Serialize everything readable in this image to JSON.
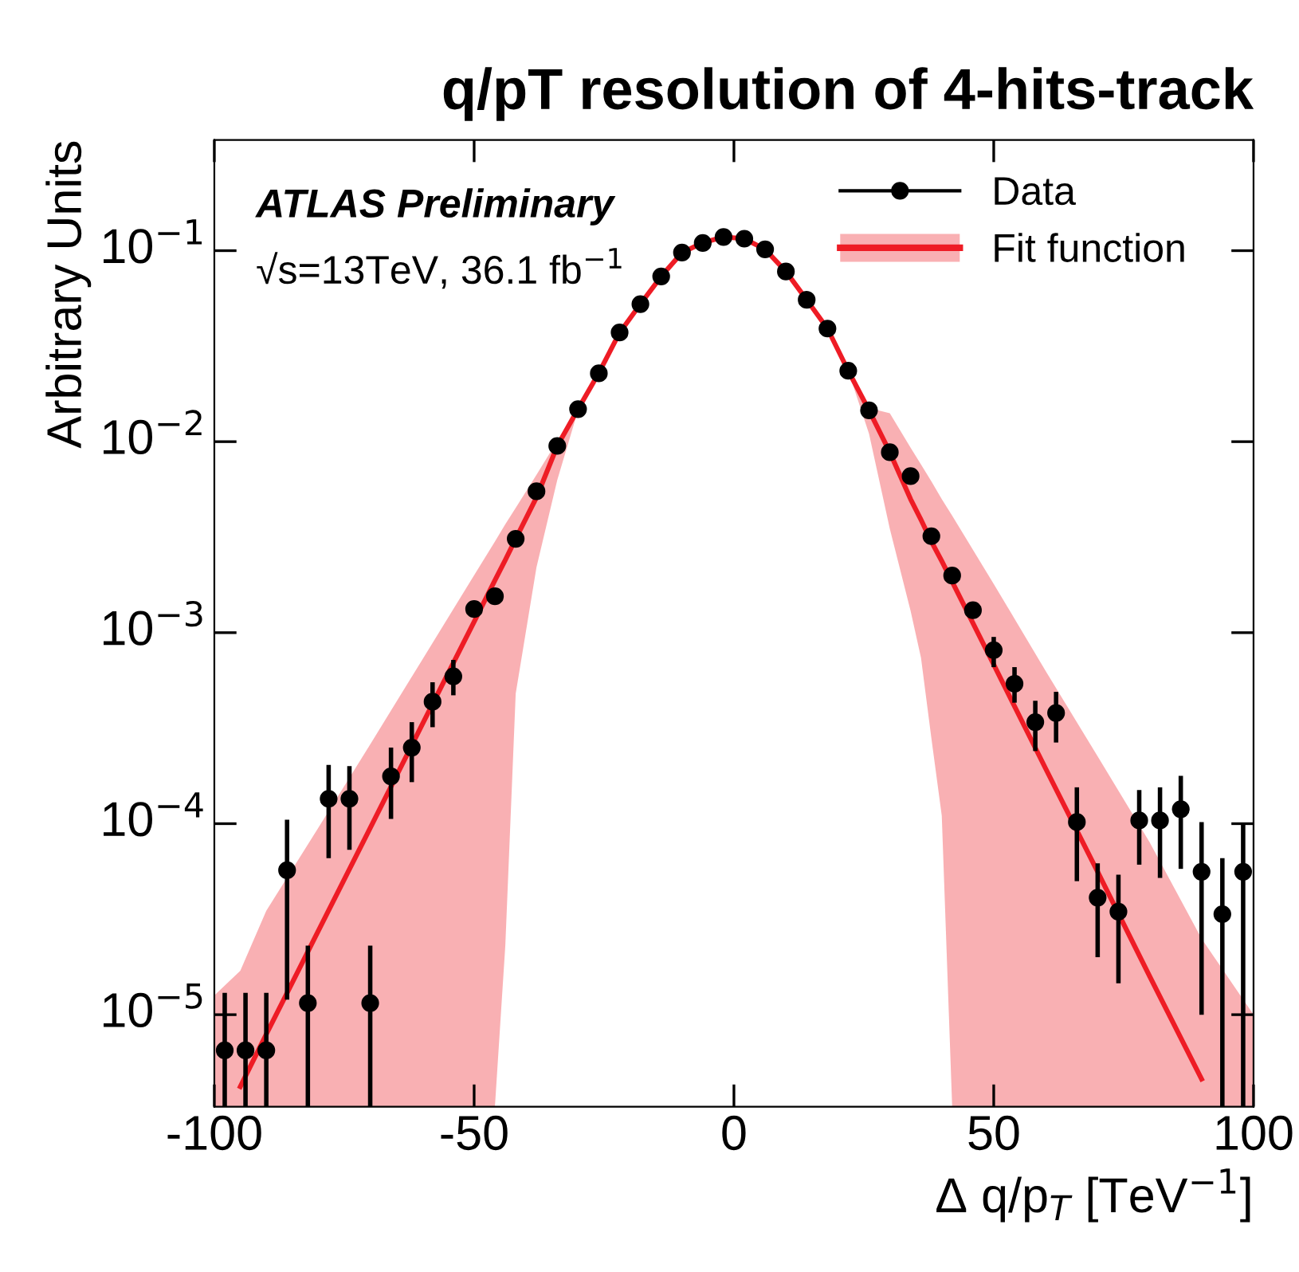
{
  "chart_data": {
    "type": "line",
    "title": "q/pT resolution of 4-hits-track",
    "xlabel": "Δ q/p$_{T}$ [TeV$^{−1}$]",
    "ylabel": "Arbitrary Units",
    "annotations": [
      "ATLAS Preliminary",
      "√s=13TeV, 36.1 fb$^{−1}$"
    ],
    "log": "y",
    "grid": false,
    "legend": "top right",
    "xlim": [
      -100,
      100
    ],
    "xticks": [
      -100,
      -50,
      0,
      50,
      100
    ],
    "ylim": [
      3.3e-06,
      0.38
    ],
    "yticks": [
      {
        "value": 1e-05,
        "label": "10$^{−5}$"
      },
      {
        "value": 0.0001,
        "label": "10$^{−4}$"
      },
      {
        "value": 0.001,
        "label": "10$^{−3}$"
      },
      {
        "value": 0.01,
        "label": "10$^{−2}$"
      },
      {
        "value": 0.1,
        "label": "10$^{−1}$"
      }
    ],
    "series": [
      {
        "name": "Fit function",
        "color": "#ee1c25",
        "line_style": "solid",
        "marker": "none",
        "x": [
          -100,
          -95,
          -90,
          -80,
          -70,
          -60,
          -50,
          -46,
          -44,
          -42,
          -38,
          -34,
          -30,
          -26,
          -22,
          -18,
          -14,
          -10,
          -6,
          -2,
          2,
          6,
          10,
          14,
          18,
          22,
          26,
          30,
          34,
          36,
          38,
          40,
          42,
          50,
          60,
          70,
          80,
          90,
          100
        ],
        "values": [
          null,
          4.2e-06,
          7.9e-06,
          2.74e-05,
          9.5e-05,
          0.00033,
          0.00114,
          0.00188,
          0.0024,
          0.0031,
          0.0051,
          0.0095,
          0.0148,
          0.0229,
          0.0372,
          0.0525,
          0.0733,
          0.0977,
          0.11,
          0.118,
          0.1155,
          0.1016,
          0.0778,
          0.0553,
          0.0391,
          0.0235,
          0.0146,
          0.0088,
          0.005,
          0.0039,
          0.003,
          0.00237,
          0.00185,
          0.00068,
          0.000194,
          5.6e-05,
          1.59e-05,
          4.6e-06,
          null
        ],
        "lower": [
          3.3e-06,
          3.3e-06,
          3.3e-06,
          3.3e-06,
          3.3e-06,
          3.3e-06,
          3.3e-06,
          3.3e-06,
          2.3e-05,
          0.00048,
          0.0022,
          0.0063,
          0.0146,
          0.0229,
          0.0372,
          0.0525,
          0.0733,
          0.0977,
          0.11,
          0.118,
          0.1155,
          0.1016,
          0.0778,
          0.0553,
          0.0391,
          0.0235,
          0.011,
          0.0035,
          0.0013,
          0.00074,
          0.00028,
          0.00011,
          3.3e-06,
          3.3e-06,
          3.3e-06,
          3.3e-06,
          3.3e-06,
          3.3e-06,
          3.3e-06
        ],
        "upper": [
          1.26e-05,
          1.7e-05,
          3.5e-05,
          9.5e-05,
          0.00026,
          0.00072,
          0.002,
          0.003,
          0.0037,
          0.0045,
          0.0067,
          0.0101,
          0.0151,
          0.0229,
          0.0372,
          0.0525,
          0.0733,
          0.0977,
          0.11,
          0.118,
          0.1155,
          0.1016,
          0.0778,
          0.0553,
          0.0391,
          0.0235,
          0.015,
          0.0141,
          0.0093,
          0.0076,
          0.0062,
          0.005,
          0.0041,
          0.0018,
          0.00063,
          0.000225,
          8e-05,
          2.5e-05,
          1e-05
        ]
      },
      {
        "name": "Data",
        "type": "scatter",
        "color": "#000000",
        "marker": "circle",
        "x": [
          -98,
          -94,
          -90,
          -86,
          -82,
          -78,
          -74,
          -70,
          -66,
          -62,
          -58,
          -54,
          -50,
          -46,
          -42,
          -38,
          -34,
          -30,
          -26,
          -22,
          -18,
          -14,
          -10,
          -6,
          -2,
          2,
          6,
          10,
          14,
          18,
          22,
          26,
          30,
          34,
          38,
          42,
          46,
          50,
          54,
          58,
          62,
          66,
          70,
          74,
          78,
          82,
          86,
          90,
          94,
          98
        ],
        "values": [
          6.5e-06,
          6.5e-06,
          6.5e-06,
          5.7e-05,
          1.15e-05,
          0.000135,
          0.000135,
          1.15e-05,
          0.000177,
          0.00025,
          0.000435,
          0.00059,
          0.00133,
          0.00155,
          0.0031,
          0.0055,
          0.0095,
          0.0148,
          0.0228,
          0.0373,
          0.0525,
          0.0733,
          0.0977,
          0.1096,
          0.118,
          0.1155,
          0.1016,
          0.0778,
          0.0553,
          0.0391,
          0.0235,
          0.0146,
          0.0088,
          0.0066,
          0.0032,
          0.00199,
          0.00131,
          0.00081,
          0.00054,
          0.00034,
          0.00038,
          0.000102,
          4.1e-05,
          3.46e-05,
          0.000104,
          0.000104,
          0.000119,
          5.6e-05,
          3.36e-05,
          5.6e-05
        ],
        "errors": [
          [
            3.3e-06,
            1.3e-05
          ],
          [
            3.3e-06,
            1.3e-05
          ],
          [
            3.3e-06,
            1.3e-05
          ],
          [
            1.2e-05,
            0.000105
          ],
          [
            3.3e-06,
            2.3e-05
          ],
          [
            6.6e-05,
            0.000203
          ],
          [
            7.3e-05,
            0.0002
          ],
          [
            3.3e-06,
            2.3e-05
          ],
          [
            0.000106,
            0.00025
          ],
          [
            0.000165,
            0.00034
          ],
          [
            0.00032,
            0.00055
          ],
          [
            0.00047,
            0.00072
          ],
          null,
          null,
          null,
          null,
          null,
          null,
          null,
          null,
          null,
          null,
          null,
          null,
          null,
          null,
          null,
          null,
          null,
          null,
          null,
          null,
          null,
          null,
          null,
          null,
          null,
          [
            0.00066,
            0.00095
          ],
          [
            0.00043,
            0.00066
          ],
          [
            0.00024,
            0.00044
          ],
          [
            0.000266,
            0.00049
          ],
          [
            5e-05,
            0.000155
          ],
          [
            2e-05,
            6.2e-05
          ],
          [
            1.46e-05,
            5.4e-05
          ],
          [
            6.1e-05,
            0.00015
          ],
          [
            5.2e-05,
            0.000155
          ],
          [
            5.8e-05,
            0.000178
          ],
          [
            1e-05,
            0.000102
          ],
          [
            3.3e-06,
            6.6e-05
          ],
          [
            3.3e-06,
            0.0001
          ]
        ]
      }
    ]
  }
}
